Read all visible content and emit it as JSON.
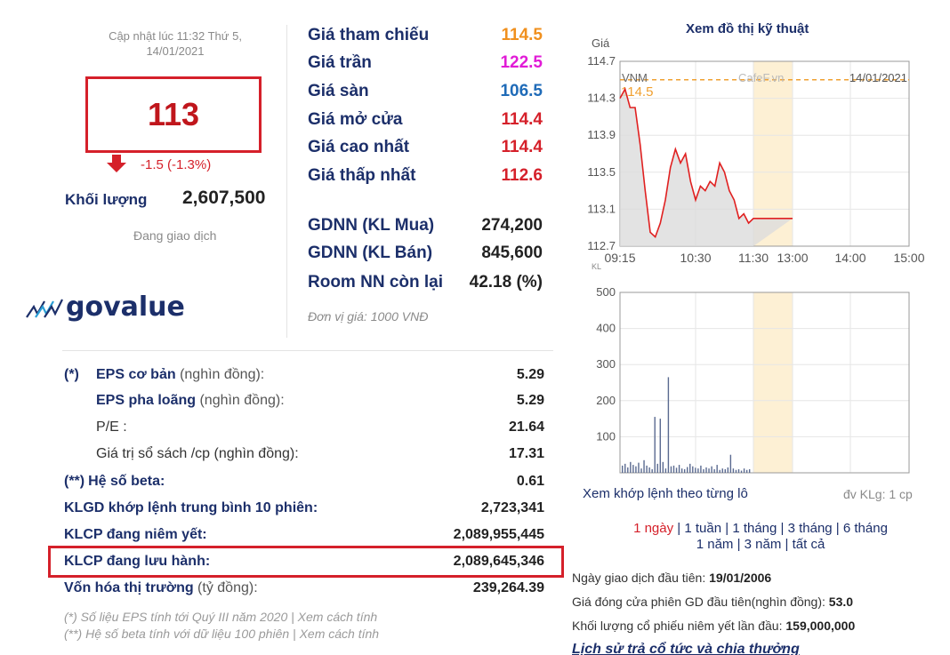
{
  "header": {
    "update_line1": "Cập nhật lúc 11:32 Thứ 5,",
    "update_line2": "14/01/2021",
    "current_price": "113",
    "change": "-1.5 (-1.3%)",
    "volume_label": "Khối lượng",
    "volume_value": "2,607,500",
    "status": "Đang giao dịch"
  },
  "logo": {
    "text": "govalue",
    "icon": "chart-waves-icon"
  },
  "prices": [
    {
      "label": "Giá tham chiếu",
      "value": "114.5",
      "color": "#f0901e"
    },
    {
      "label": "Giá trần",
      "value": "122.5",
      "color": "#e11bd6"
    },
    {
      "label": "Giá sàn",
      "value": "106.5",
      "color": "#1f6bb8"
    },
    {
      "label": "Giá mở cửa",
      "value": "114.4",
      "color": "#d5202a"
    },
    {
      "label": "Giá cao nhất",
      "value": "114.4",
      "color": "#d5202a"
    },
    {
      "label": "Giá thấp nhất",
      "value": "112.6",
      "color": "#d5202a"
    }
  ],
  "foreign": [
    {
      "label": "GDNN (KL Mua)",
      "value": "274,200"
    },
    {
      "label": "GDNN (KL Bán)",
      "value": "845,600"
    },
    {
      "label": "Room NN còn lại",
      "value": "42.18 (%)"
    }
  ],
  "unit_note": "Đơn vị giá: 1000 VNĐ",
  "financials": [
    {
      "mark": "(*)",
      "bold": "EPS cơ bản",
      "rest": " (nghìn đồng):",
      "value": "5.29"
    },
    {
      "mark": "",
      "bold": "EPS pha loãng",
      "rest": " (nghìn đồng):",
      "value": "5.29"
    },
    {
      "mark": "",
      "bold": "",
      "rest": "P/E :",
      "value": "21.64"
    },
    {
      "mark": "",
      "bold": "",
      "rest": "Giá trị sổ sách /cp (nghìn đồng):",
      "value": "17.31"
    },
    {
      "mark": "(**)",
      "bold": "Hệ số beta:",
      "rest": "",
      "value": "0.61"
    },
    {
      "mark": "",
      "bold": "KLGD khớp lệnh trung bình 10 phiên:",
      "rest": "",
      "value": "2,723,341"
    },
    {
      "mark": "",
      "bold": "KLCP đang niêm yết:",
      "rest": "",
      "value": "2,089,955,445"
    },
    {
      "mark": "",
      "bold": "KLCP đang lưu hành:",
      "rest": "",
      "value": "2,089,645,346"
    },
    {
      "mark": "",
      "bold": "Vốn hóa thị trường",
      "rest": " (tỷ đồng):",
      "value": "239,264.39"
    }
  ],
  "notes": [
    "(*) Số liệu EPS tính tới Quý III năm 2020 | Xem cách tính",
    "(**) Hệ số beta tính với dữ liệu 100 phiên | Xem cách tính"
  ],
  "chart": {
    "title": "Xem đồ thị kỹ thuật",
    "price_axis_label": "Giá",
    "symbol": "VNM",
    "source": "CafeF.vn",
    "date": "14/01/2021",
    "ref_label": "114.5",
    "vol_axis_label": "KL"
  },
  "chart_data": [
    {
      "type": "line",
      "title": "",
      "ylabel": "Giá",
      "ylim": [
        112.7,
        114.7
      ],
      "y_ticks": [
        "114.7",
        "114.3",
        "113.9",
        "113.5",
        "113.1",
        "112.7"
      ],
      "x_ticks": [
        "09:15",
        "10:30",
        "11:30",
        "13:00",
        "14:00",
        "15:00"
      ],
      "reference": 114.5,
      "series": [
        {
          "name": "VNM",
          "x": [
            "09:15",
            "09:20",
            "09:25",
            "09:30",
            "09:35",
            "09:40",
            "09:45",
            "09:50",
            "09:55",
            "10:00",
            "10:05",
            "10:10",
            "10:15",
            "10:20",
            "10:25",
            "10:30",
            "10:35",
            "10:40",
            "10:45",
            "10:50",
            "10:55",
            "11:00",
            "11:05",
            "11:10",
            "11:15",
            "11:20",
            "11:25",
            "11:30",
            "13:00"
          ],
          "values": [
            114.3,
            114.4,
            114.2,
            114.2,
            113.8,
            113.3,
            112.85,
            112.8,
            112.95,
            113.2,
            113.55,
            113.75,
            113.6,
            113.7,
            113.4,
            113.2,
            113.35,
            113.3,
            113.4,
            113.35,
            113.6,
            113.5,
            113.3,
            113.2,
            113.0,
            113.05,
            112.95,
            113.0,
            113.0
          ]
        }
      ]
    },
    {
      "type": "bar",
      "title": "",
      "ylabel": "KL",
      "ylim": [
        0,
        500
      ],
      "y_ticks": [
        "500",
        "400",
        "300",
        "200",
        "100"
      ],
      "series": [
        {
          "name": "",
          "values": [
            20,
            25,
            15,
            30,
            22,
            18,
            28,
            12,
            35,
            20,
            15,
            10,
            155,
            25,
            150,
            30,
            12,
            265,
            18,
            20,
            14,
            22,
            12,
            10,
            16,
            25,
            18,
            14,
            12,
            20,
            10,
            15,
            12,
            18,
            10,
            22,
            8,
            12,
            10,
            15,
            50,
            12,
            8,
            10,
            6,
            12,
            8,
            10
          ]
        }
      ]
    }
  ],
  "below_chart": {
    "orders_link": "Xem khớp lệnh theo từng lô",
    "unit": "đv KLg: 1 cp",
    "periods_line1": [
      {
        "label": "1 ngày",
        "active": true
      },
      {
        "label": "1 tuần",
        "active": false
      },
      {
        "label": "1 tháng",
        "active": false
      },
      {
        "label": "3 tháng",
        "active": false
      },
      {
        "label": "6 tháng",
        "active": false
      }
    ],
    "periods_line2": [
      {
        "label": "1 năm",
        "active": false
      },
      {
        "label": "3 năm",
        "active": false
      },
      {
        "label": "tất cả",
        "active": false
      }
    ],
    "info": [
      {
        "label": "Ngày giao dịch đầu tiên: ",
        "value": "19/01/2006"
      },
      {
        "label": "Giá đóng cửa phiên GD đầu tiên(nghìn đồng): ",
        "value": "53.0"
      },
      {
        "label": "Khối lượng cổ phiếu niêm yết lần đầu: ",
        "value": "159,000,000"
      }
    ],
    "dividend_link": "Lịch sử trả cổ tức và chia thưởng"
  }
}
